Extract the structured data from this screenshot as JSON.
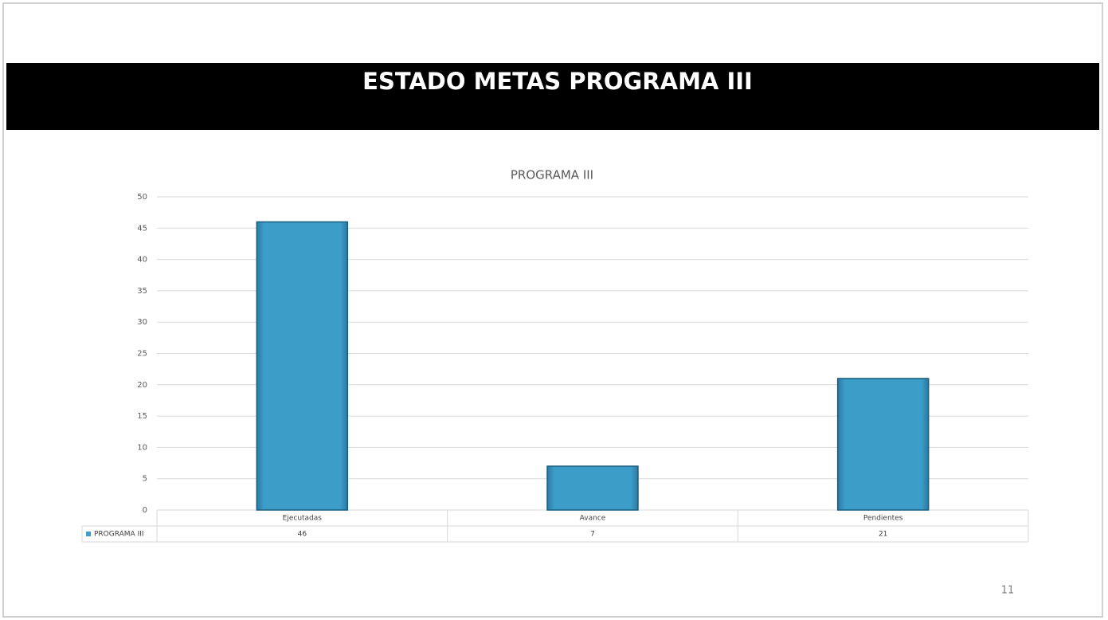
{
  "slide_title": "ESTADO METAS PROGRAMA III",
  "page_number": 11,
  "chart_data": {
    "type": "bar",
    "title": "PROGRAMA III",
    "categories": [
      "Ejecutadas",
      "Avance",
      "Pendientes"
    ],
    "series": [
      {
        "name": "PROGRAMA III",
        "color": "#3d9dc9",
        "values": [
          46,
          7,
          21
        ]
      }
    ],
    "ylim": [
      0,
      50
    ],
    "yticks": [
      0,
      5,
      10,
      15,
      20,
      25,
      30,
      35,
      40,
      45,
      50
    ],
    "grid": true,
    "data_table": true
  }
}
